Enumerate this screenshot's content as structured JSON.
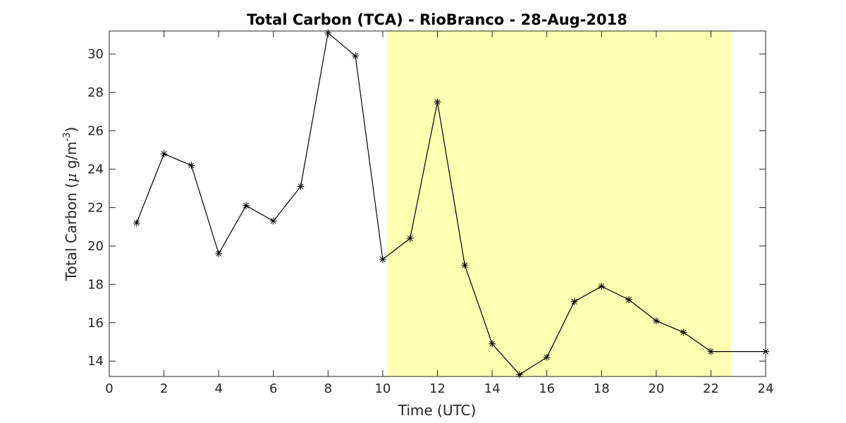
{
  "chart_data": {
    "type": "line",
    "title": "Total Carbon (TCA) - RioBranco - 28-Aug-2018",
    "xlabel": "Time (UTC)",
    "ylabel": {
      "prefix": "Total Carbon (",
      "mu": "μ",
      "unit_mid": " g/m",
      "exponent": "-3",
      "suffix": ")"
    },
    "xlim": [
      0,
      24
    ],
    "ylim": [
      13.2,
      31.2
    ],
    "xticks": [
      0,
      2,
      4,
      6,
      8,
      10,
      12,
      14,
      16,
      18,
      20,
      22,
      24
    ],
    "yticks": [
      14,
      16,
      18,
      20,
      22,
      24,
      26,
      28,
      30
    ],
    "x": [
      1,
      2,
      3,
      4,
      5,
      6,
      7,
      8,
      9,
      10,
      11,
      12,
      13,
      14,
      15,
      16,
      17,
      18,
      19,
      20,
      21,
      22,
      24
    ],
    "y": [
      21.2,
      24.8,
      24.2,
      19.6,
      22.1,
      21.3,
      23.1,
      31.1,
      29.9,
      19.3,
      20.4,
      27.5,
      19.0,
      14.9,
      13.3,
      14.2,
      17.1,
      17.9,
      17.2,
      16.1,
      15.5,
      14.5,
      14.5
    ],
    "marker": "asterisk",
    "line_color": "#000000",
    "shaded_region": {
      "x_start": 10.15,
      "x_end": 22.75,
      "color": "#ffffb3"
    },
    "grid": false
  }
}
